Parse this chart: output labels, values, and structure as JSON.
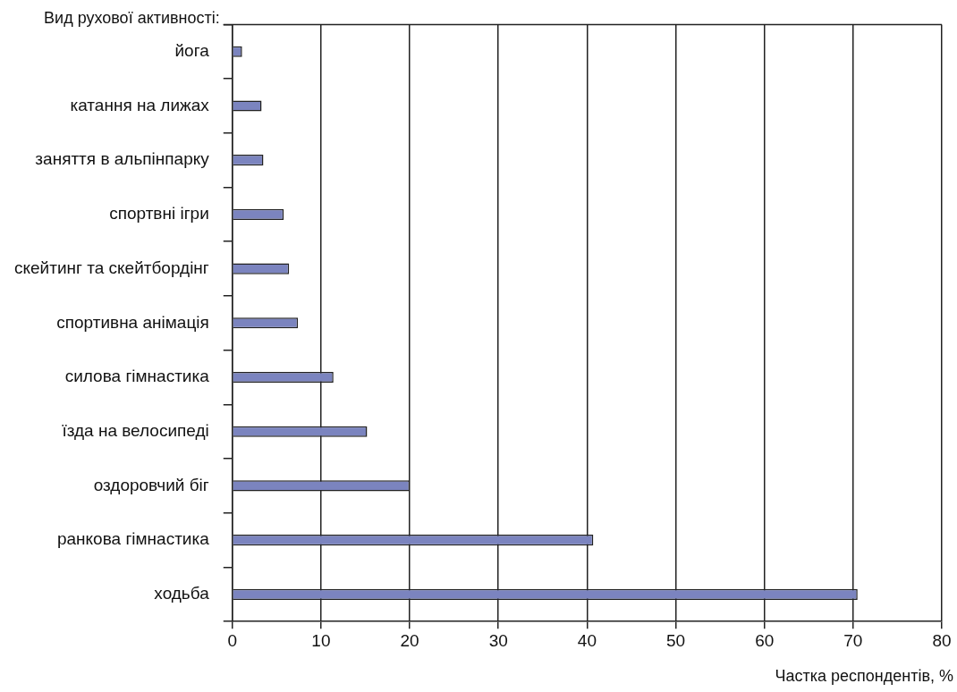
{
  "chart_data": {
    "type": "bar",
    "orientation": "horizontal",
    "ylabel": "Вид рухової активності:",
    "xlabel": "Частка респондентів, %",
    "categories": [
      "йога",
      "катання на лижах",
      "заняття в альпінпарку",
      "спортвні ігри",
      "скейтинг та скейтбордінг",
      "спортивна анімація",
      "силова гімнастика",
      "їзда на велосипеді",
      "оздоровчий біг",
      "ранкова гімнастика",
      "ходьба"
    ],
    "values": [
      1.1,
      3.3,
      3.5,
      5.8,
      6.4,
      7.4,
      11.4,
      15.2,
      20.0,
      40.7,
      70.5
    ],
    "color": "#7b84bf",
    "xlim": [
      0,
      80
    ],
    "xticks": [
      0,
      10,
      20,
      30,
      40,
      50,
      60,
      70,
      80
    ],
    "grid": "x",
    "legend": false
  }
}
